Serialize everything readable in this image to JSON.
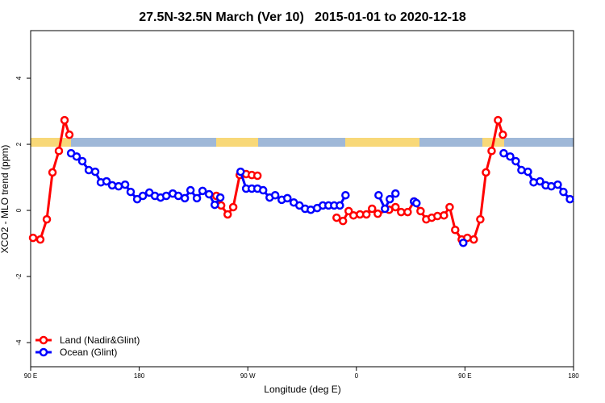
{
  "chart_data": {
    "type": "line",
    "title": "27.5N-32.5N March (Ver 10)   2015-01-01 to 2020-12-18",
    "x_label": "Longitude (deg E)",
    "y_label": "XCO2 - MLO trend (ppm)",
    "xlim": [
      90,
      540
    ],
    "ylim": [
      -4.73,
      5.44
    ],
    "xticks": [
      {
        "value": 90,
        "label": "90 E"
      },
      180,
      {
        "value": 270,
        "label": "90 W"
      },
      {
        "value": 360,
        "label": "0"
      },
      {
        "value": 450,
        "label": "90 E"
      },
      {
        "value": 540,
        "label": "180"
      }
    ],
    "yticks": [
      -4,
      -2,
      0,
      2,
      4
    ],
    "legend": "bottomleft",
    "series": [
      {
        "name": "Land (Nadir&Glint)",
        "color": "#ff0000",
        "x": [
          92.0,
          98.0,
          103.4,
          108.1,
          113.4,
          118.1,
          122.1,
          null,
          243.9,
          247.9,
          253.3,
          257.9,
          263.3,
          268.6,
          273.3,
          278.0,
          null,
          343.6,
          348.9,
          353.6,
          357.6,
          363.0,
          368.3,
          373.0,
          377.7,
          387.1,
          392.4,
          397.1,
          402.5,
          407.8,
          413.2,
          417.9,
          422.5,
          427.2,
          432.6,
          437.3,
          441.9,
          447.3,
          452.0,
          457.3,
          462.7,
          467.4,
          472.1,
          477.4,
          481.4
        ],
        "values": [
          -0.83,
          -0.88,
          -0.27,
          1.15,
          1.8,
          2.73,
          2.29,
          null,
          0.44,
          0.15,
          -0.12,
          0.1,
          1.07,
          1.1,
          1.07,
          1.05,
          null,
          -0.22,
          -0.32,
          -0.02,
          -0.15,
          -0.12,
          -0.12,
          0.05,
          -0.1,
          0.02,
          0.1,
          -0.05,
          -0.05,
          0.27,
          -0.02,
          -0.27,
          -0.22,
          -0.17,
          -0.15,
          0.1,
          -0.59,
          -0.88,
          -0.83,
          -0.88,
          -0.27,
          1.15,
          1.8,
          2.73,
          2.29
        ]
      },
      {
        "name": "Ocean (Glint)",
        "color": "#0000ff",
        "x": [
          123.5,
          128.1,
          132.8,
          138.2,
          143.5,
          148.2,
          152.9,
          157.6,
          162.9,
          168.3,
          172.9,
          178.3,
          183.0,
          188.4,
          193.0,
          197.7,
          202.4,
          207.8,
          212.4,
          217.8,
          222.5,
          227.8,
          232.5,
          237.9,
          242.6,
          247.2,
          null,
          264.0,
          268.6,
          273.3,
          278.0,
          282.7,
          288.1,
          292.7,
          298.1,
          302.8,
          308.1,
          312.8,
          317.5,
          322.2,
          327.5,
          332.2,
          336.9,
          341.6,
          346.3,
          351.0,
          null,
          378.4,
          383.7,
          387.7,
          392.4,
          null,
          407.8,
          409.8,
          null,
          448.6,
          null,
          482.1,
          487.5,
          492.1,
          496.8,
          502.2,
          506.9,
          512.2,
          516.9,
          521.6,
          526.9,
          531.6,
          537.0
        ],
        "values": [
          1.73,
          1.63,
          1.49,
          1.22,
          1.17,
          0.85,
          0.88,
          0.76,
          0.73,
          0.78,
          0.56,
          0.34,
          0.44,
          0.54,
          0.44,
          0.39,
          0.44,
          0.51,
          0.44,
          0.37,
          0.61,
          0.37,
          0.59,
          0.49,
          0.17,
          0.39,
          null,
          1.17,
          0.66,
          0.66,
          0.66,
          0.61,
          0.39,
          0.46,
          0.32,
          0.37,
          0.24,
          0.15,
          0.05,
          0.02,
          0.07,
          0.15,
          0.15,
          0.15,
          0.15,
          0.46,
          null,
          0.46,
          0.05,
          0.34,
          0.51,
          null,
          0.27,
          0.22,
          null,
          -0.98,
          null,
          1.73,
          1.63,
          1.49,
          1.22,
          1.17,
          0.85,
          0.88,
          0.76,
          0.73,
          0.78,
          0.56,
          0.34
        ]
      }
    ]
  }
}
